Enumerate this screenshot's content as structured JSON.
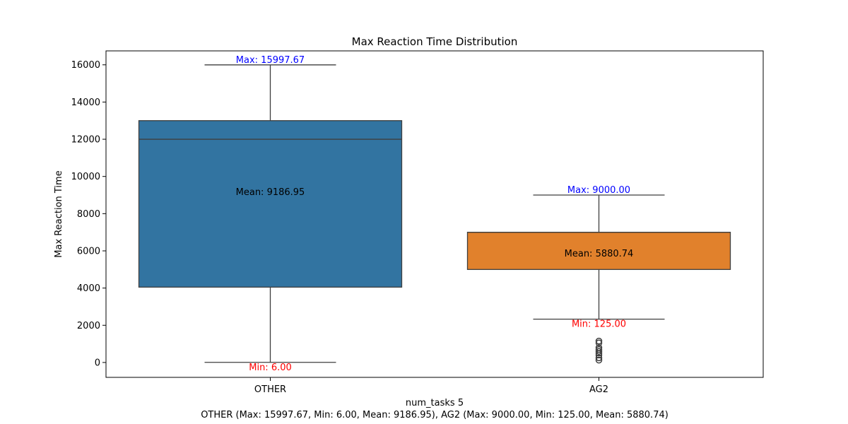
{
  "chart_data": {
    "type": "box",
    "title": "Max Reaction Time Distribution",
    "xlabel": "num_tasks 5",
    "ylabel": "Max Reaction Time",
    "caption": "OTHER (Max: 15997.67, Min: 6.00, Mean: 9186.95), AG2 (Max: 9000.00, Min: 125.00, Mean: 5880.74)",
    "ylim": [
      -800,
      16750
    ],
    "yticks": [
      0,
      2000,
      4000,
      6000,
      8000,
      10000,
      12000,
      14000,
      16000
    ],
    "grid": false,
    "categories": [
      "OTHER",
      "AG2"
    ],
    "boxes": [
      {
        "category": "OTHER",
        "color": "#3274a1",
        "whisker_low": 6.0,
        "q1": 4050,
        "median": 12000,
        "q3": 13000,
        "whisker_high": 15997.67,
        "outliers": [],
        "max_label": "Max: 15997.67",
        "min_label": "Min: 6.00",
        "mean_label": "Mean: 9186.95",
        "mean": 9186.95
      },
      {
        "category": "AG2",
        "color": "#e1812c",
        "whisker_low": 2330,
        "q1": 5000,
        "median": 7000,
        "q3": 7000,
        "whisker_high": 9000.0,
        "outliers": [
          125,
          250,
          400,
          500,
          600,
          700,
          800,
          1050,
          1150
        ],
        "max_label": "Max: 9000.00",
        "min_label": "Min: 125.00",
        "mean_label": "Mean: 5880.74",
        "mean": 5880.74
      }
    ],
    "annotation_colors": {
      "max": "#0000ff",
      "min": "#ff0000",
      "mean": "#000000"
    }
  }
}
